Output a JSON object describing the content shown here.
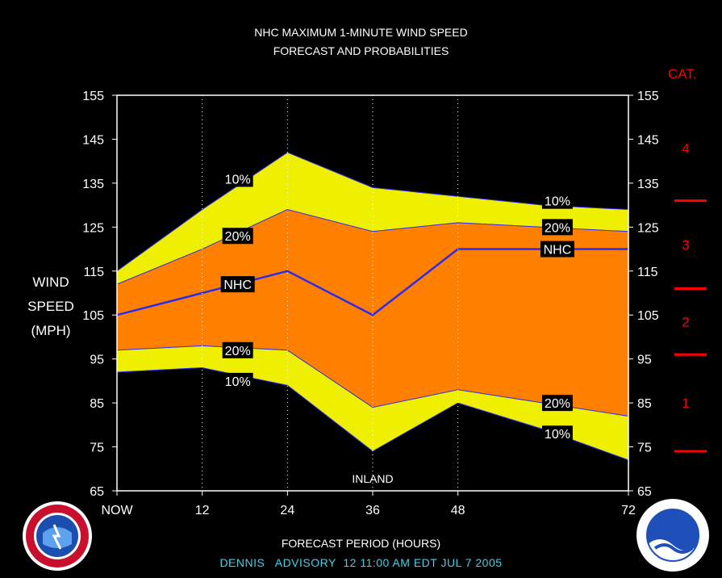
{
  "title_line1": "NHC MAXIMUM 1-MINUTE WIND SPEED",
  "title_line2": "FORECAST AND PROBABILITIES",
  "ylabel_line1": "WIND",
  "ylabel_line2": "SPEED",
  "ylabel_line3": "(MPH)",
  "xlabel": "FORECAST PERIOD (HOURS)",
  "advisory_text": "DENNIS   ADVISORY  12 11:00 AM EDT JUL 7 2005",
  "category_title": "CAT.",
  "inland_label": "INLAND",
  "colors": {
    "background": "#000000",
    "band_10": "#eef000",
    "band_20": "#ff8000",
    "nhc_line": "#2a2af0",
    "category": "#ff0000",
    "advisory": "#44d0e8"
  },
  "chart_data": {
    "type": "area",
    "x": [
      0,
      12,
      24,
      36,
      48,
      60,
      72
    ],
    "x_tick_labels": [
      "NOW",
      "12",
      "24",
      "36",
      "48",
      "",
      "72"
    ],
    "ylim": [
      65,
      155
    ],
    "xlim": [
      0,
      72
    ],
    "y_ticks": [
      65,
      75,
      85,
      95,
      105,
      115,
      125,
      135,
      145,
      155
    ],
    "grid_x": [
      12,
      24,
      36,
      48
    ],
    "series": [
      {
        "name": "10%",
        "role": "upper_10",
        "values": [
          115,
          129,
          142,
          134,
          132,
          130,
          129
        ]
      },
      {
        "name": "20%",
        "role": "upper_20",
        "values": [
          112,
          120,
          129,
          124,
          126,
          125,
          124
        ]
      },
      {
        "name": "NHC",
        "role": "nhc",
        "values": [
          105,
          110,
          115,
          105,
          120,
          120,
          120
        ]
      },
      {
        "name": "20%",
        "role": "lower_20",
        "values": [
          97,
          98,
          97,
          84,
          88,
          85,
          82
        ]
      },
      {
        "name": "10%",
        "role": "lower_10",
        "values": [
          92,
          93,
          89,
          74,
          85,
          79,
          72
        ]
      }
    ],
    "labels": [
      {
        "text": "10%",
        "x": 17,
        "y": 136
      },
      {
        "text": "20%",
        "x": 17,
        "y": 123
      },
      {
        "text": "NHC",
        "x": 17,
        "y": 112
      },
      {
        "text": "20%",
        "x": 17,
        "y": 97
      },
      {
        "text": "10%",
        "x": 17,
        "y": 90
      },
      {
        "text": "10%",
        "x": 62,
        "y": 131
      },
      {
        "text": "20%",
        "x": 62,
        "y": 125
      },
      {
        "text": "NHC",
        "x": 62,
        "y": 120
      },
      {
        "text": "20%",
        "x": 62,
        "y": 85
      },
      {
        "text": "10%",
        "x": 62,
        "y": 78
      }
    ],
    "category_thresholds": [
      74,
      96,
      111,
      131
    ],
    "categories": [
      {
        "label": "1",
        "y": 85
      },
      {
        "label": "2",
        "y": 103.5
      },
      {
        "label": "3",
        "y": 121
      },
      {
        "label": "4",
        "y": 143
      }
    ]
  }
}
